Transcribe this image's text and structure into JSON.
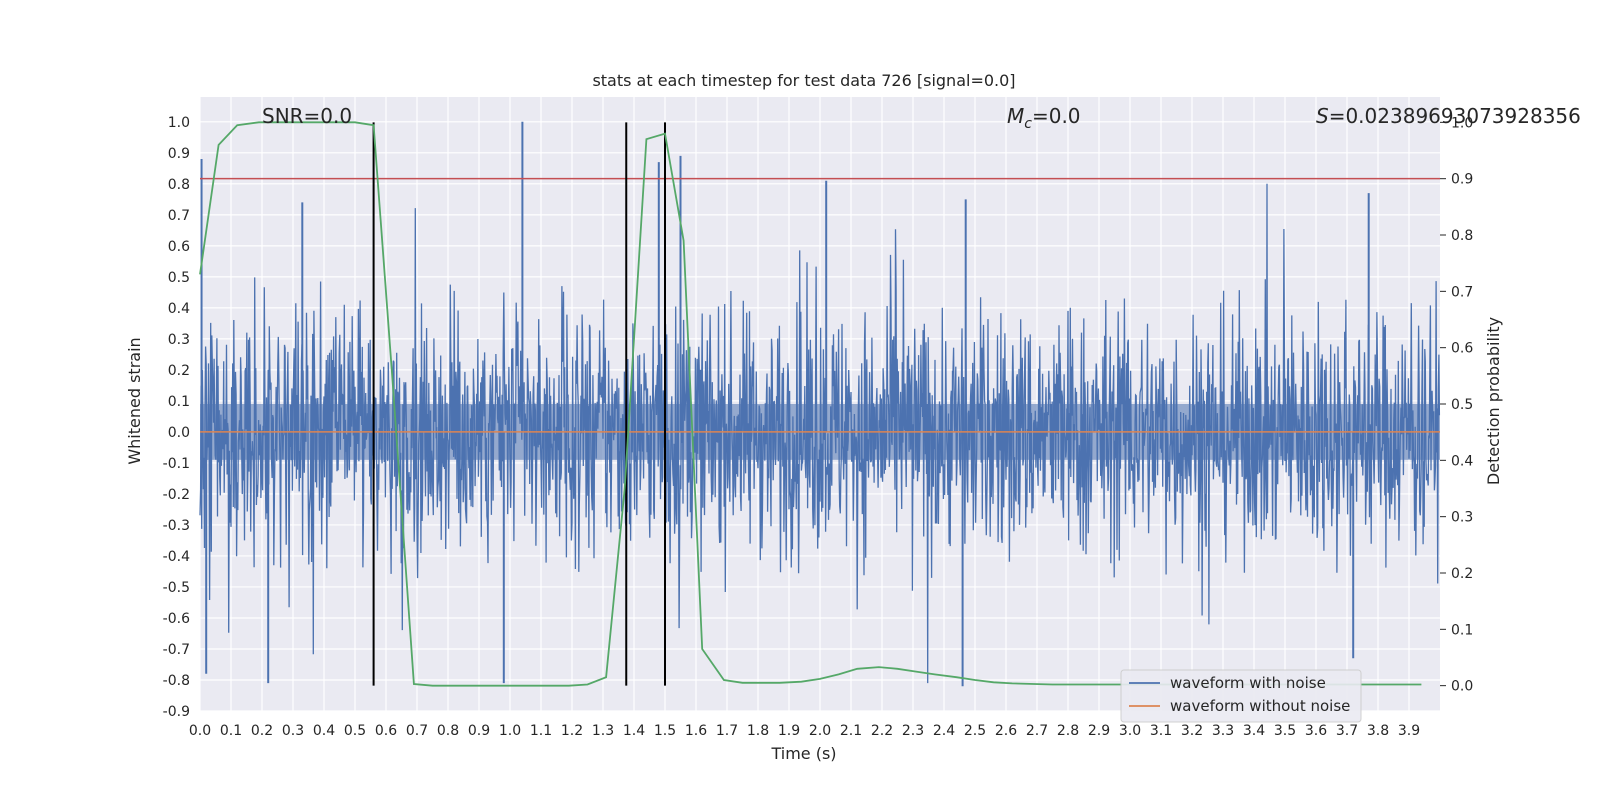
{
  "chart_data": {
    "type": "line",
    "title": "stats at each timestep for test data 726 [signal=0.0]",
    "xlabel": "Time (s)",
    "ylabel": "Whitened strain",
    "y2label": "Detection probability",
    "xlim": [
      0.0,
      4.0
    ],
    "ylim": [
      -0.9,
      1.08
    ],
    "y2lim": [
      -0.045,
      1.045
    ],
    "x_ticks": [
      0.0,
      0.1,
      0.2,
      0.3,
      0.4,
      0.5,
      0.6,
      0.7,
      0.8,
      0.9,
      1.0,
      1.1,
      1.2,
      1.3,
      1.4,
      1.5,
      1.6,
      1.7,
      1.8,
      1.9,
      2.0,
      2.1,
      2.2,
      2.3,
      2.4,
      2.5,
      2.6,
      2.7,
      2.8,
      2.9,
      3.0,
      3.1,
      3.2,
      3.3,
      3.4,
      3.5,
      3.6,
      3.7,
      3.8,
      3.9
    ],
    "y_ticks": [
      -0.9,
      -0.8,
      -0.7,
      -0.6,
      -0.5,
      -0.4,
      -0.3,
      -0.2,
      -0.1,
      0.0,
      0.1,
      0.2,
      0.3,
      0.4,
      0.5,
      0.6,
      0.7,
      0.8,
      0.9,
      1.0
    ],
    "y2_ticks": [
      0.0,
      0.1,
      0.2,
      0.3,
      0.4,
      0.5,
      0.6,
      0.7,
      0.8,
      0.9,
      1.0
    ],
    "grid": true,
    "legend_position": "lower-right",
    "annotations": {
      "snr": "SNR=0.0",
      "mc_symbol": "M",
      "mc_subscript": "c",
      "mc_value": "=0.0",
      "s_symbol": "S",
      "s_value": "=0.02389693073928356"
    },
    "series": [
      {
        "name": "waveform with noise",
        "color": "#4c72b0",
        "axis": "left",
        "noise_envelope": [
          -0.81,
          1.0
        ],
        "peaks": [
          {
            "x": 0.005,
            "y": 0.88
          },
          {
            "x": 0.02,
            "y": -0.78
          },
          {
            "x": 0.22,
            "y": -0.81
          },
          {
            "x": 0.33,
            "y": 0.74
          },
          {
            "x": 1.04,
            "y": 1.0
          },
          {
            "x": 1.48,
            "y": 0.87
          },
          {
            "x": 1.55,
            "y": 0.89
          },
          {
            "x": 0.98,
            "y": -0.81
          },
          {
            "x": 2.02,
            "y": 0.81
          },
          {
            "x": 2.47,
            "y": 0.75
          },
          {
            "x": 2.46,
            "y": -0.82
          },
          {
            "x": 3.77,
            "y": 0.77
          },
          {
            "x": 3.72,
            "y": -0.73
          }
        ]
      },
      {
        "name": "waveform without noise",
        "color": "#dd8452",
        "axis": "left",
        "x": [
          0.0,
          4.0
        ],
        "y": [
          0.0,
          0.0
        ]
      },
      {
        "color": "#55a868",
        "axis": "right",
        "x": [
          0.0,
          0.06,
          0.12,
          0.19,
          0.25,
          0.31,
          0.37,
          0.44,
          0.5,
          0.56,
          0.62,
          0.69,
          0.75,
          0.81,
          0.87,
          0.94,
          1.0,
          1.06,
          1.12,
          1.19,
          1.25,
          1.31,
          1.37,
          1.44,
          1.5,
          1.56,
          1.62,
          1.69,
          1.75,
          1.81,
          1.87,
          1.94,
          2.0,
          2.06,
          2.12,
          2.19,
          2.25,
          2.31,
          2.37,
          2.44,
          2.5,
          2.56,
          2.62,
          2.69,
          2.75,
          2.81,
          2.87,
          2.94,
          3.0,
          3.06,
          3.12,
          3.19,
          3.25,
          3.31,
          3.37,
          3.44,
          3.5,
          3.56,
          3.62,
          3.69,
          3.75,
          3.81,
          3.87,
          3.94
        ],
        "y": [
          0.73,
          0.96,
          0.995,
          1.0,
          1.0,
          1.0,
          1.0,
          1.0,
          1.0,
          0.995,
          0.55,
          0.003,
          0.0,
          0.0,
          0.0,
          0.0,
          0.0,
          0.0,
          0.0,
          0.0,
          0.002,
          0.015,
          0.35,
          0.97,
          0.98,
          0.79,
          0.065,
          0.01,
          0.005,
          0.005,
          0.005,
          0.007,
          0.012,
          0.02,
          0.03,
          0.033,
          0.03,
          0.025,
          0.02,
          0.015,
          0.01,
          0.006,
          0.004,
          0.003,
          0.002,
          0.002,
          0.002,
          0.002,
          0.002,
          0.002,
          0.002,
          0.002,
          0.002,
          0.002,
          0.002,
          0.002,
          0.002,
          0.002,
          0.002,
          0.002,
          0.002,
          0.002,
          0.002,
          0.002
        ]
      }
    ],
    "reference_lines": {
      "horizontal_right_axis": {
        "y": 0.9,
        "color": "#c44e52"
      },
      "vertical": {
        "x": [
          0.56,
          1.375,
          1.5
        ],
        "y_range_right_axis": [
          0.0,
          1.0
        ],
        "color": "#000000"
      }
    }
  }
}
